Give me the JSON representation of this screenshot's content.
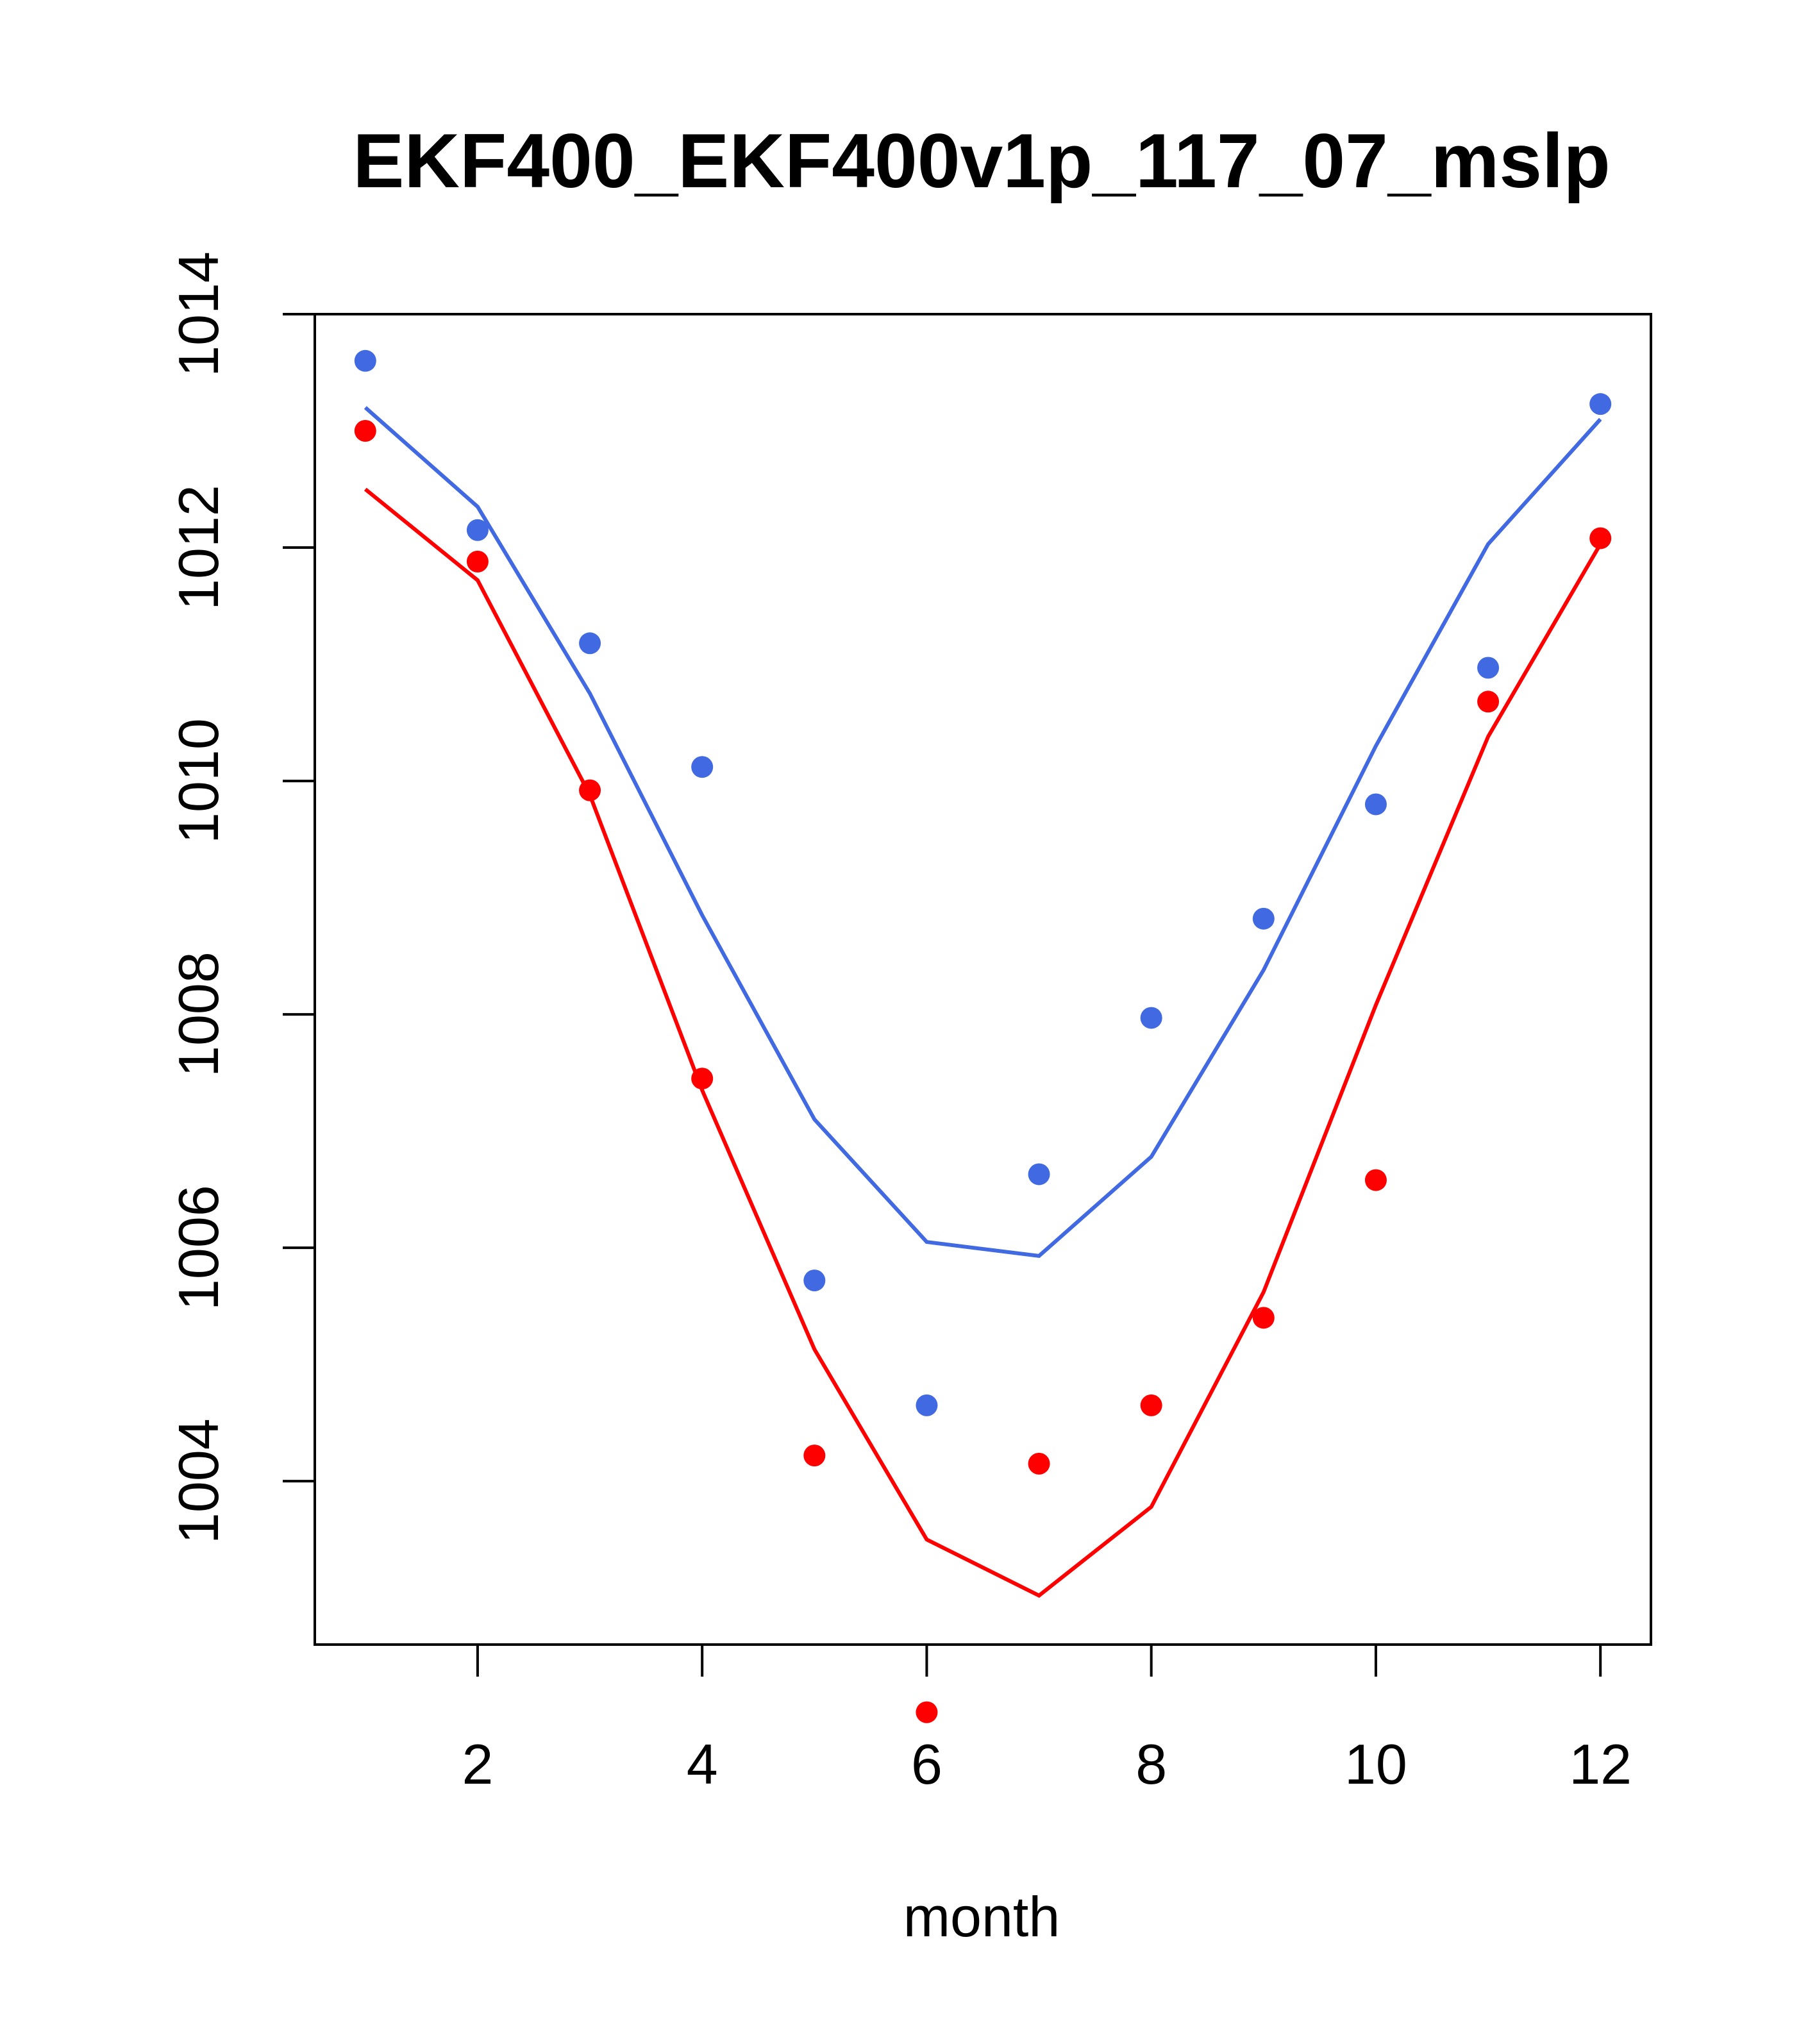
{
  "chart_data": {
    "type": "scatter",
    "title": "EKF400_EKF400v1p_117_07_mslp",
    "xlabel": "month",
    "ylabel": "",
    "xlim": [
      0.55,
      12.45
    ],
    "ylim": [
      1002.6,
      1014.0
    ],
    "x_ticks": [
      2,
      4,
      6,
      8,
      10,
      12
    ],
    "x_tick_labels": [
      "2",
      "4",
      "6",
      "8",
      "10",
      "12"
    ],
    "y_ticks": [
      1004,
      1006,
      1008,
      1010,
      1012,
      1014
    ],
    "y_tick_labels": [
      "1004",
      "1006",
      "1008",
      "1010",
      "1012",
      "1014"
    ],
    "grid": false,
    "series": [
      {
        "name": "blue",
        "color": "#4169E1",
        "x": [
          1,
          2,
          3,
          4,
          5,
          6,
          7,
          8,
          9,
          10,
          11,
          12
        ],
        "points": [
          1013.6,
          1012.15,
          1011.18,
          1010.12,
          1005.72,
          1004.65,
          1006.63,
          1007.97,
          1008.82,
          1009.8,
          1010.97,
          1013.23
        ],
        "line": [
          1013.2,
          1012.35,
          1010.75,
          1008.85,
          1007.1,
          1006.05,
          1005.93,
          1006.78,
          1008.38,
          1010.3,
          1012.03,
          1013.1
        ]
      },
      {
        "name": "red",
        "color": "#FF0000",
        "x": [
          1,
          2,
          3,
          4,
          5,
          6,
          7,
          8,
          9,
          10,
          11,
          12
        ],
        "points": [
          1013.0,
          1011.88,
          1009.92,
          1007.45,
          1004.22,
          1002.02,
          1004.15,
          1004.65,
          1005.4,
          1006.58,
          1010.68,
          1012.08
        ],
        "line": [
          1012.5,
          1011.72,
          1009.88,
          1007.35,
          1005.13,
          1003.5,
          1003.02,
          1003.78,
          1005.62,
          1008.08,
          1010.38,
          1012.03
        ]
      }
    ]
  }
}
